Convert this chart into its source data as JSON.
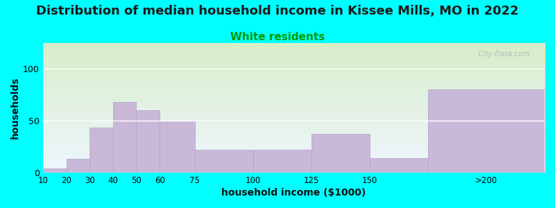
{
  "title": "Distribution of median household income in Kissee Mills, MO in 2022",
  "subtitle": "White residents",
  "xlabel": "household income ($1000)",
  "ylabel": "households",
  "background_color": "#00FFFF",
  "bar_color": "#c9b8d8",
  "bar_edge_color": "#b0a0c8",
  "bin_edges": [
    10,
    20,
    30,
    40,
    50,
    60,
    75,
    100,
    125,
    150,
    175,
    225
  ],
  "values": [
    4,
    13,
    43,
    68,
    60,
    50,
    22,
    22,
    37,
    14,
    80
  ],
  "xtick_positions": [
    10,
    20,
    30,
    40,
    50,
    60,
    75,
    100,
    125,
    150,
    200
  ],
  "xtick_labels": [
    "10",
    "20",
    "30",
    "40",
    "50",
    "60",
    "75",
    "100",
    "125",
    "150",
    ">200"
  ],
  "yticks": [
    0,
    50,
    100
  ],
  "ylim": [
    0,
    125
  ],
  "xlim": [
    10,
    225
  ],
  "title_fontsize": 13,
  "subtitle_fontsize": 11,
  "subtitle_color": "#009900",
  "watermark": "  City-Data.com",
  "plot_bg_top": "#d8eec8",
  "plot_bg_bottom": "#eef6ff"
}
